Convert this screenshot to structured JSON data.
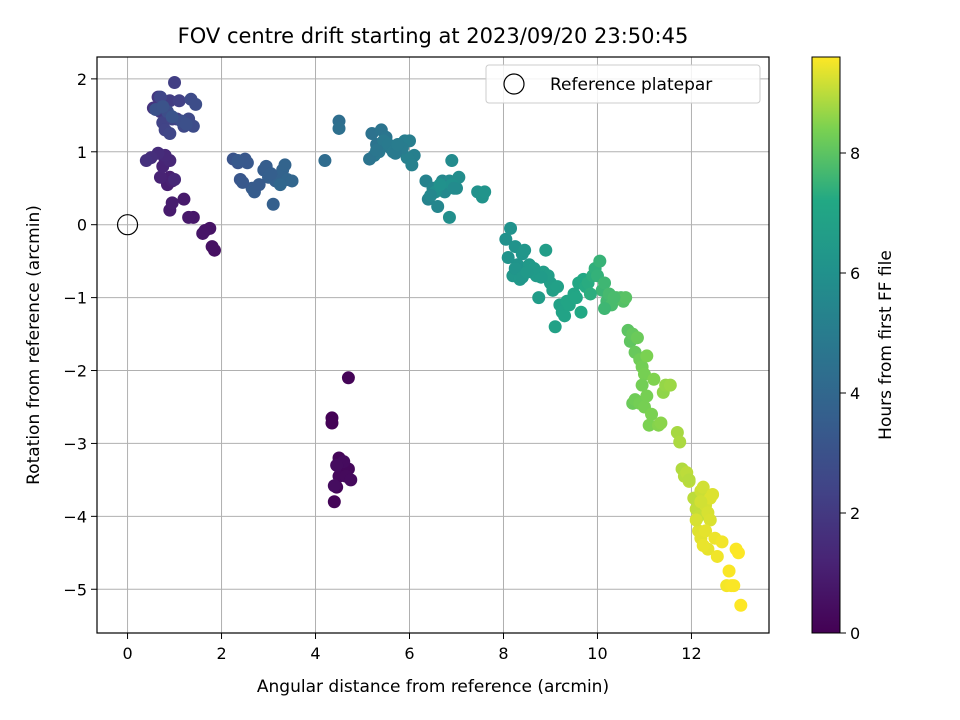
{
  "chart_data": {
    "type": "scatter",
    "title": "FOV centre drift starting at 2023/09/20 23:50:45",
    "xlabel": "Angular distance from reference (arcmin)",
    "ylabel": "Rotation from reference (arcmin)",
    "xlim": [
      -0.65,
      13.65
    ],
    "ylim": [
      -5.6,
      2.3
    ],
    "xticks": [
      0,
      2,
      4,
      6,
      8,
      10,
      12
    ],
    "yticks": [
      2,
      1,
      0,
      -1,
      -2,
      -3,
      -4,
      -5
    ],
    "grid": true,
    "legend": {
      "position": "top-right",
      "label": "Reference platepar"
    },
    "reference_point": {
      "x": 0,
      "y": 0
    },
    "colorbar": {
      "label": "Hours from first FF file",
      "colormap": "viridis",
      "range": [
        0,
        9.6
      ],
      "ticks": [
        0,
        2,
        4,
        6,
        8
      ]
    },
    "series": [
      {
        "x": [
          4.35,
          4.35,
          4.7,
          4.4,
          4.45,
          4.5,
          4.55,
          4.6,
          4.7,
          4.5,
          4.65,
          4.75,
          4.6,
          4.45,
          4.4
        ],
        "y": [
          -2.65,
          -2.72,
          -2.1,
          -3.8,
          -3.6,
          -3.2,
          -3.3,
          -3.4,
          -3.35,
          -3.45,
          -3.45,
          -3.5,
          -3.25,
          -3.3,
          -3.58
        ],
        "c": [
          0.05,
          0.08,
          0.1,
          0.12,
          0.15,
          0.18,
          0.2,
          0.22,
          0.25,
          0.28,
          0.3,
          0.32,
          0.35,
          0.38,
          0.4
        ]
      },
      {
        "x": [
          1.85,
          1.8,
          1.75,
          1.65,
          1.6,
          1.4,
          1.3,
          1.2,
          0.9,
          0.95,
          0.85,
          0.9,
          0.95,
          0.7,
          0.75,
          0.8,
          1.0,
          0.9,
          0.8,
          0.65,
          0.5,
          0.4
        ],
        "y": [
          -0.35,
          -0.3,
          -0.05,
          -0.08,
          -0.12,
          0.1,
          0.1,
          0.35,
          0.2,
          0.3,
          0.55,
          0.65,
          0.6,
          0.65,
          0.8,
          0.9,
          0.62,
          0.88,
          0.95,
          0.98,
          0.92,
          0.88
        ],
        "c": [
          0.5,
          0.55,
          0.6,
          0.65,
          0.7,
          0.75,
          0.8,
          0.85,
          0.9,
          0.95,
          1.0,
          1.05,
          1.1,
          1.15,
          1.2,
          1.25,
          1.3,
          1.35,
          1.4,
          1.5,
          1.6,
          1.7
        ]
      },
      {
        "x": [
          0.55,
          0.65,
          0.7,
          0.8,
          0.85,
          0.9,
          1.0,
          1.05,
          1.1,
          0.75,
          0.8,
          0.95,
          0.7,
          0.9,
          1.2,
          1.3,
          1.35,
          1.4,
          1.45,
          0.85,
          1.15,
          1.25,
          0.6,
          0.75,
          0.95
        ],
        "y": [
          1.6,
          1.75,
          1.55,
          1.65,
          1.5,
          1.7,
          1.95,
          1.45,
          1.7,
          1.4,
          1.3,
          1.45,
          1.75,
          1.25,
          1.35,
          1.45,
          1.72,
          1.35,
          1.65,
          1.55,
          1.42,
          1.38,
          1.58,
          1.62,
          1.48
        ],
        "c": [
          1.8,
          1.9,
          2.0,
          2.05,
          2.1,
          2.15,
          2.2,
          2.25,
          2.3,
          2.35,
          2.4,
          2.45,
          2.5,
          2.55,
          2.6,
          2.65,
          2.7,
          2.75,
          2.8,
          2.85,
          2.9,
          2.95,
          3.0,
          3.05,
          3.1
        ]
      },
      {
        "x": [
          2.25,
          2.35,
          2.4,
          2.5,
          2.55,
          2.35,
          2.65,
          2.7,
          2.9,
          2.95,
          3.0,
          3.1,
          3.15,
          3.2,
          3.3,
          3.35,
          3.4,
          3.5,
          3.25,
          3.05,
          2.8,
          2.45
        ],
        "y": [
          0.9,
          0.85,
          0.62,
          0.9,
          0.85,
          0.88,
          0.5,
          0.45,
          0.75,
          0.8,
          0.65,
          0.28,
          0.6,
          0.65,
          0.75,
          0.82,
          0.62,
          0.6,
          0.55,
          0.7,
          0.55,
          0.58
        ],
        "c": [
          3.1,
          3.15,
          3.2,
          3.25,
          3.3,
          3.35,
          3.4,
          3.45,
          3.5,
          3.55,
          3.6,
          3.65,
          3.7,
          3.75,
          3.8,
          3.85,
          3.9,
          3.95,
          4.0,
          3.6,
          3.4,
          3.3
        ]
      },
      {
        "x": [
          4.2,
          4.5,
          4.5,
          5.2,
          5.3,
          5.4,
          5.5,
          5.6,
          5.25,
          5.35,
          5.45,
          5.55,
          5.65,
          5.8,
          5.9,
          6.0,
          6.1,
          5.95,
          6.05,
          5.85,
          5.15,
          5.3,
          5.7,
          5.75
        ],
        "y": [
          0.88,
          1.42,
          1.32,
          1.25,
          1.1,
          1.3,
          1.2,
          1.05,
          0.95,
          1.0,
          1.15,
          1.1,
          1.0,
          1.1,
          1.15,
          1.15,
          0.95,
          0.92,
          0.82,
          1.05,
          0.9,
          1.02,
          0.98,
          1.1
        ],
        "c": [
          4.2,
          4.3,
          4.4,
          4.5,
          4.55,
          4.6,
          4.65,
          4.7,
          4.75,
          4.8,
          4.85,
          4.9,
          4.95,
          5.0,
          5.05,
          5.1,
          5.15,
          5.2,
          5.25,
          5.0,
          4.6,
          4.7,
          4.9,
          5.0
        ]
      },
      {
        "x": [
          6.35,
          6.4,
          6.5,
          6.6,
          6.7,
          6.75,
          6.8,
          6.85,
          6.9,
          7.0,
          7.05,
          6.55,
          6.85,
          6.9,
          6.65,
          7.45,
          7.55,
          7.6,
          6.95,
          6.45
        ],
        "y": [
          0.6,
          0.35,
          0.5,
          0.25,
          0.6,
          0.45,
          0.55,
          0.6,
          0.88,
          0.5,
          0.65,
          0.45,
          0.1,
          0.55,
          0.55,
          0.45,
          0.38,
          0.45,
          0.5,
          0.4
        ],
        "c": [
          5.3,
          5.35,
          5.4,
          5.45,
          5.5,
          5.55,
          5.6,
          5.65,
          5.7,
          5.75,
          5.8,
          5.85,
          5.9,
          5.95,
          6.0,
          6.05,
          6.1,
          6.15,
          5.7,
          5.5
        ]
      },
      {
        "x": [
          8.05,
          8.15,
          8.25,
          8.3,
          8.4,
          8.45,
          8.2,
          8.35,
          8.55,
          8.6,
          8.7,
          8.75,
          8.85,
          8.9,
          9.0,
          9.05,
          9.15,
          9.2,
          9.25,
          9.3,
          9.35,
          8.95,
          8.25,
          8.4,
          8.8,
          9.1,
          8.65,
          8.1,
          8.5,
          9.4,
          9.5
        ],
        "y": [
          -0.2,
          -0.05,
          -0.3,
          -0.55,
          -0.4,
          -0.35,
          -0.7,
          -0.75,
          -0.55,
          -0.65,
          -0.7,
          -1.0,
          -0.65,
          -0.35,
          -0.8,
          -0.9,
          -0.85,
          -1.1,
          -1.2,
          -1.25,
          -1.05,
          -0.7,
          -0.6,
          -0.72,
          -0.72,
          -1.4,
          -0.6,
          -0.45,
          -0.65,
          -1.1,
          -0.95
        ],
        "c": [
          6.0,
          6.05,
          6.1,
          6.15,
          6.2,
          6.25,
          6.3,
          6.35,
          6.4,
          6.45,
          6.5,
          6.55,
          6.6,
          6.65,
          6.7,
          6.75,
          6.8,
          6.85,
          6.9,
          6.95,
          7.0,
          6.6,
          6.2,
          6.3,
          6.5,
          6.85,
          6.45,
          6.1,
          6.4,
          7.0,
          7.05
        ]
      },
      {
        "x": [
          9.55,
          9.6,
          9.7,
          9.75,
          9.8,
          9.9,
          9.95,
          10.0,
          10.05,
          10.1,
          10.15,
          10.2,
          10.25,
          10.3,
          10.4,
          10.5,
          10.55,
          10.6,
          10.65,
          10.7,
          10.75,
          10.8,
          10.85,
          10.9,
          10.95,
          11.0,
          11.05,
          9.65,
          9.85,
          10.15,
          10.35
        ],
        "y": [
          -1.0,
          -0.8,
          -0.75,
          -0.85,
          -0.8,
          -0.7,
          -0.6,
          -0.7,
          -0.5,
          -0.9,
          -0.8,
          -1.05,
          -0.95,
          -1.1,
          -1.0,
          -1.0,
          -1.05,
          -1.0,
          -1.45,
          -1.6,
          -1.5,
          -1.75,
          -1.55,
          -1.85,
          -1.95,
          -2.05,
          -1.8,
          -1.2,
          -0.95,
          -1.15,
          -1.0
        ],
        "c": [
          7.1,
          7.15,
          7.2,
          7.25,
          7.3,
          7.35,
          7.4,
          7.45,
          7.5,
          7.55,
          7.6,
          7.65,
          7.7,
          7.75,
          7.8,
          7.85,
          7.9,
          7.95,
          8.0,
          8.05,
          8.1,
          8.15,
          8.2,
          8.25,
          8.3,
          8.35,
          8.4,
          7.2,
          7.35,
          7.6,
          7.75
        ]
      },
      {
        "x": [
          10.75,
          10.8,
          10.9,
          11.0,
          11.1,
          11.2,
          11.3,
          11.35,
          11.4,
          11.45,
          11.55,
          11.7,
          11.75,
          11.8,
          11.85,
          11.9,
          11.95,
          10.95,
          11.05,
          11.15
        ],
        "y": [
          -2.45,
          -2.4,
          -2.45,
          -2.5,
          -2.75,
          -2.12,
          -2.75,
          -2.72,
          -2.3,
          -2.2,
          -2.2,
          -2.85,
          -2.98,
          -3.35,
          -3.45,
          -3.4,
          -3.52,
          -2.2,
          -2.35,
          -2.6
        ],
        "c": [
          8.2,
          8.25,
          8.3,
          8.35,
          8.4,
          8.45,
          8.5,
          8.55,
          8.6,
          8.65,
          8.7,
          8.8,
          8.85,
          8.9,
          8.95,
          9.0,
          9.05,
          8.3,
          8.35,
          8.4
        ]
      },
      {
        "x": [
          11.95,
          12.05,
          12.1,
          12.15,
          12.2,
          12.25,
          12.3,
          12.35,
          12.4,
          12.45,
          12.15,
          12.2,
          12.3,
          12.35,
          12.25,
          12.1,
          12.5,
          12.55,
          12.65,
          12.75,
          12.85,
          12.9,
          12.95,
          13.0,
          13.05,
          12.8,
          12.4,
          12.2
        ],
        "y": [
          -3.5,
          -3.75,
          -3.9,
          -4.0,
          -3.65,
          -3.6,
          -3.85,
          -3.95,
          -4.05,
          -3.7,
          -4.2,
          -4.3,
          -4.2,
          -4.45,
          -4.4,
          -4.05,
          -4.3,
          -4.55,
          -4.35,
          -4.95,
          -4.95,
          -4.95,
          -4.45,
          -4.5,
          -5.22,
          -4.75,
          -3.75,
          -3.8
        ],
        "c": [
          8.95,
          9.0,
          9.05,
          9.1,
          9.15,
          9.2,
          9.22,
          9.25,
          9.28,
          9.3,
          9.32,
          9.35,
          9.38,
          9.4,
          9.42,
          9.25,
          9.45,
          9.48,
          9.5,
          9.52,
          9.55,
          9.57,
          9.58,
          9.59,
          9.6,
          9.56,
          9.3,
          9.2
        ]
      }
    ]
  }
}
